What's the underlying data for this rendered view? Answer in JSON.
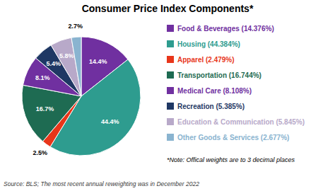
{
  "chart_data": {
    "type": "pie",
    "title": "Consumer Price Index Components*",
    "categories": [
      "Food & Beverages (14.376%)",
      "Housing (44.384%)",
      "Apparel (2.479%)",
      "Transportation (16.744%)",
      "Medical Care (8.108%)",
      "Recreation (5.385%)",
      "Education & Communication (5.845%)",
      "Other Goods & Services (2.677%)"
    ],
    "values": [
      14.376,
      44.384,
      2.479,
      16.744,
      8.108,
      5.385,
      5.845,
      2.677
    ],
    "value_labels": [
      "14.4%",
      "44.4%",
      "2.5%",
      "16.7%",
      "8.1%",
      "5.4%",
      "5.8%",
      "2.7%"
    ],
    "data_labels": true,
    "colors": [
      "#7030a0",
      "#2e9c8f",
      "#e8361a",
      "#1e6b52",
      "#7030a0",
      "#1f3864",
      "#b8a9c9",
      "#8ab4d0"
    ],
    "legend": "right",
    "annotations": [
      "*Note: Offical weights are to 3 decimal places",
      "Source: BLS; The most recent annual reweighting was in December 2022"
    ]
  }
}
